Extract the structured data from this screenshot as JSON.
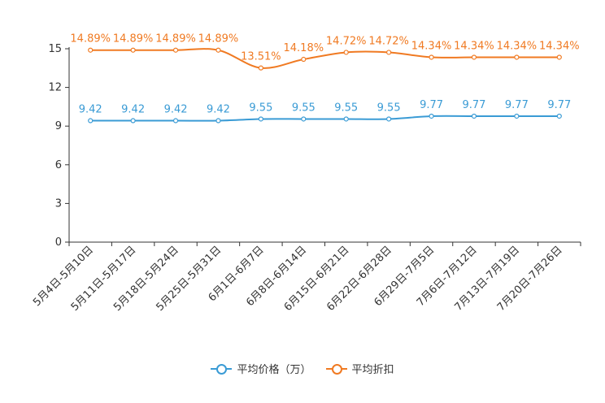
{
  "chart_data": {
    "type": "line",
    "categories": [
      "5月4日-5月10日",
      "5月11日-5月17日",
      "5月18日-5月24日",
      "5月25日-5月31日",
      "6月1日-6月7日",
      "6月8日-6月14日",
      "6月15日-6月21日",
      "6月22日-6月28日",
      "6月29日-7月5日",
      "7月6日-7月12日",
      "7月13日-7月19日",
      "7月20日-7月26日"
    ],
    "ylim": [
      0,
      15
    ],
    "yticks": [
      0,
      3,
      6,
      9,
      12,
      15
    ],
    "series": [
      {
        "name": "平均价格（万）",
        "color": "#3a9bd5",
        "values": [
          9.42,
          9.42,
          9.42,
          9.42,
          9.55,
          9.55,
          9.55,
          9.55,
          9.77,
          9.77,
          9.77,
          9.77
        ],
        "labels": [
          "9.42",
          "9.42",
          "9.42",
          "9.42",
          "9.55",
          "9.55",
          "9.55",
          "9.55",
          "9.77",
          "9.77",
          "9.77",
          "9.77"
        ]
      },
      {
        "name": "平均折扣",
        "color": "#f07a22",
        "values": [
          14.89,
          14.89,
          14.89,
          14.89,
          13.51,
          14.18,
          14.72,
          14.72,
          14.34,
          14.34,
          14.34,
          14.34
        ],
        "labels": [
          "14.89%",
          "14.89%",
          "14.89%",
          "14.89%",
          "13.51%",
          "14.18%",
          "14.72%",
          "14.72%",
          "14.34%",
          "14.34%",
          "14.34%",
          "14.34%"
        ]
      }
    ],
    "legend_position": "bottom"
  }
}
